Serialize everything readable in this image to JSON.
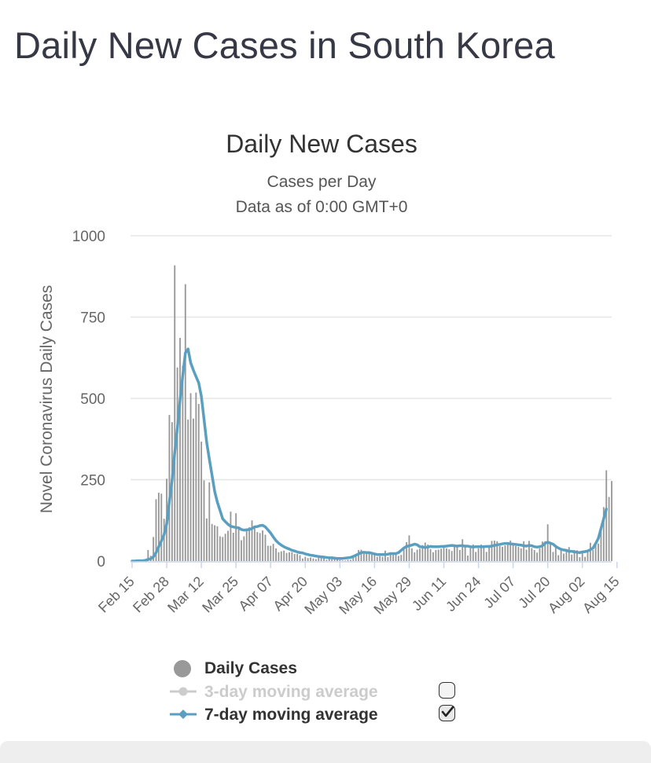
{
  "page": {
    "title": "Daily New Cases in South Korea"
  },
  "chart_data": {
    "type": "bar",
    "title": "Daily New Cases",
    "subtitle": "Cases per Day",
    "subtitle2": "Data as of 0:00 GMT+0",
    "ylabel": "Novel Coronavirus Daily Cases",
    "xlabel": "",
    "ylim": [
      0,
      1000
    ],
    "yticks": [
      0,
      250,
      500,
      750,
      1000
    ],
    "ytick_labels": [
      "0",
      "250",
      "500",
      "750",
      "1000"
    ],
    "x_start": "Feb 15",
    "x_ticks": [
      {
        "label": "Feb 15",
        "day": 0
      },
      {
        "label": "Feb 28",
        "day": 13
      },
      {
        "label": "Mar 12",
        "day": 26
      },
      {
        "label": "Mar 25",
        "day": 39
      },
      {
        "label": "Apr 07",
        "day": 52
      },
      {
        "label": "Apr 20",
        "day": 65
      },
      {
        "label": "May 03",
        "day": 78
      },
      {
        "label": "May 16",
        "day": 91
      },
      {
        "label": "May 29",
        "day": 104
      },
      {
        "label": "Jun 11",
        "day": 117
      },
      {
        "label": "Jun 24",
        "day": 130
      },
      {
        "label": "Jul 07",
        "day": 143
      },
      {
        "label": "Jul 20",
        "day": 156
      },
      {
        "label": "Aug 02",
        "day": 169
      },
      {
        "label": "Aug 15",
        "day": 182
      }
    ],
    "grid": true,
    "legend_position": "bottom",
    "series": [
      {
        "name": "Daily Cases",
        "color": "#999999",
        "values": [
          0,
          1,
          0,
          0,
          0,
          2,
          34,
          16,
          74,
          190,
          210,
          207,
          130,
          253,
          449,
          427,
          909,
          595,
          686,
          600,
          851,
          435,
          516,
          438,
          518,
          483,
          367,
          248,
          131,
          242,
          114,
          110,
          107,
          76,
          74,
          84,
          93,
          152,
          87,
          147,
          98,
          64,
          76,
          100,
          104,
          125,
          101,
          89,
          86,
          94,
          81,
          47,
          47,
          53,
          39,
          27,
          30,
          32,
          25,
          27,
          27,
          22,
          22,
          18,
          8,
          13,
          9,
          11,
          8,
          6,
          10,
          14,
          9,
          4,
          9,
          6,
          13,
          8,
          3,
          2,
          2,
          4,
          4,
          12,
          18,
          34,
          35,
          27,
          26,
          29,
          27,
          19,
          13,
          15,
          13,
          32,
          12,
          20,
          23,
          25,
          16,
          19,
          40,
          58,
          79,
          39,
          27,
          35,
          38,
          49,
          57,
          51,
          37,
          27,
          34,
          35,
          38,
          49,
          39,
          36,
          31,
          50,
          45,
          34,
          67,
          48,
          17,
          46,
          51,
          28,
          39,
          51,
          42,
          28,
          42,
          62,
          63,
          61,
          46,
          44,
          48,
          54,
          63,
          50,
          46,
          44,
          39,
          61,
          35,
          62,
          40,
          34,
          26,
          39,
          60,
          61,
          113,
          58,
          28,
          48,
          18,
          36,
          23,
          31,
          43,
          20,
          34,
          33,
          12,
          30,
          13,
          28,
          56,
          34,
          58,
          54,
          103,
          166,
          279,
          197,
          246
        ],
        "bars": true
      },
      {
        "name": "3-day moving average",
        "color": "#cccccc",
        "visible": false
      },
      {
        "name": "7-day moving average",
        "color": "#5a9fc0",
        "values": [
          0,
          0,
          1,
          1,
          1,
          2,
          5,
          7,
          13,
          26,
          44,
          62,
          81,
          115,
          184,
          247,
          333,
          409,
          495,
          569,
          640,
          652,
          609,
          587,
          567,
          548,
          506,
          436,
          365,
          313,
          264,
          214,
          181,
          156,
          130,
          121,
          113,
          107,
          105,
          103,
          102,
          97,
          95,
          96,
          97,
          100,
          105,
          106,
          109,
          110,
          105,
          96,
          86,
          74,
          63,
          55,
          49,
          44,
          40,
          37,
          33,
          31,
          28,
          26,
          25,
          22,
          20,
          18,
          17,
          15,
          14,
          13,
          12,
          11,
          10,
          10,
          9,
          8,
          8,
          8,
          9,
          10,
          11,
          14,
          18,
          22,
          26,
          27,
          26,
          26,
          24,
          22,
          20,
          20,
          20,
          20,
          21,
          23,
          23,
          23,
          26,
          33,
          40,
          45,
          47,
          49,
          52,
          50,
          44,
          43,
          42,
          43,
          45,
          44,
          44,
          44,
          45,
          45,
          46,
          47,
          48,
          47,
          46,
          47,
          47,
          46,
          46,
          44,
          43,
          44,
          44,
          44,
          44,
          45,
          45,
          46,
          48,
          50,
          51,
          53,
          54,
          54,
          53,
          52,
          51,
          50,
          49,
          47,
          46,
          48,
          47,
          44,
          43,
          44,
          47,
          55,
          58,
          55,
          52,
          45,
          40,
          36,
          34,
          33,
          30,
          30,
          28,
          27,
          26,
          28,
          29,
          31,
          35,
          40,
          54,
          70,
          100,
          130,
          160
        ],
        "bars": false
      }
    ]
  }
}
